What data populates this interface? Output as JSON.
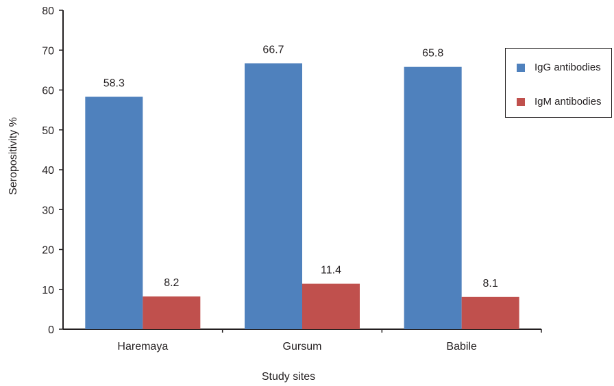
{
  "chart_data": {
    "type": "bar",
    "categories": [
      "Haremaya",
      "Gursum",
      "Babile"
    ],
    "series": [
      {
        "name": "IgG antibodies",
        "values": [
          58.3,
          66.7,
          65.8
        ],
        "labels": [
          "58.3",
          "66.7",
          "65.8"
        ],
        "color": "#4f81bd"
      },
      {
        "name": "IgM antibodies",
        "values": [
          8.2,
          11.4,
          8.1
        ],
        "labels": [
          "8.2",
          "11.4",
          "8.1"
        ],
        "color": "#c0504d"
      }
    ],
    "title": "",
    "xlabel": "Study sites",
    "ylabel": "Seropositivity %",
    "ylim": [
      0,
      80
    ],
    "yticks": [
      "0",
      "10",
      "20",
      "30",
      "40",
      "50",
      "60",
      "70",
      "80"
    ],
    "grid": false,
    "legend_position": "right"
  }
}
